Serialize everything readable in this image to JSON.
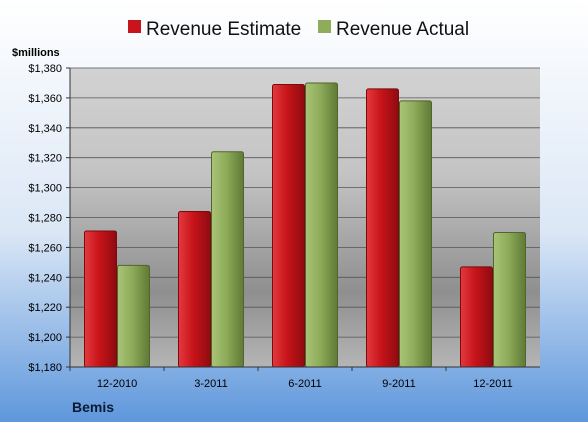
{
  "chart_data": {
    "type": "bar",
    "unit_label": "$millions",
    "company": "Bemis",
    "categories": [
      "12-2010",
      "3-2011",
      "6-2011",
      "9-2011",
      "12-2011"
    ],
    "series": [
      {
        "name": "Revenue Estimate",
        "color": "#c8141a",
        "values": [
          1271,
          1284,
          1369,
          1366,
          1247
        ]
      },
      {
        "name": "Revenue Actual",
        "color": "#8eac5a",
        "values": [
          1248,
          1324,
          1370,
          1358,
          1270
        ]
      }
    ],
    "ylim": [
      1180,
      1380
    ],
    "yticks": [
      "$1,180",
      "$1,200",
      "$1,220",
      "$1,240",
      "$1,260",
      "$1,280",
      "$1,300",
      "$1,320",
      "$1,340",
      "$1,360",
      "$1,380"
    ],
    "grid": true,
    "legend_position": "top"
  }
}
